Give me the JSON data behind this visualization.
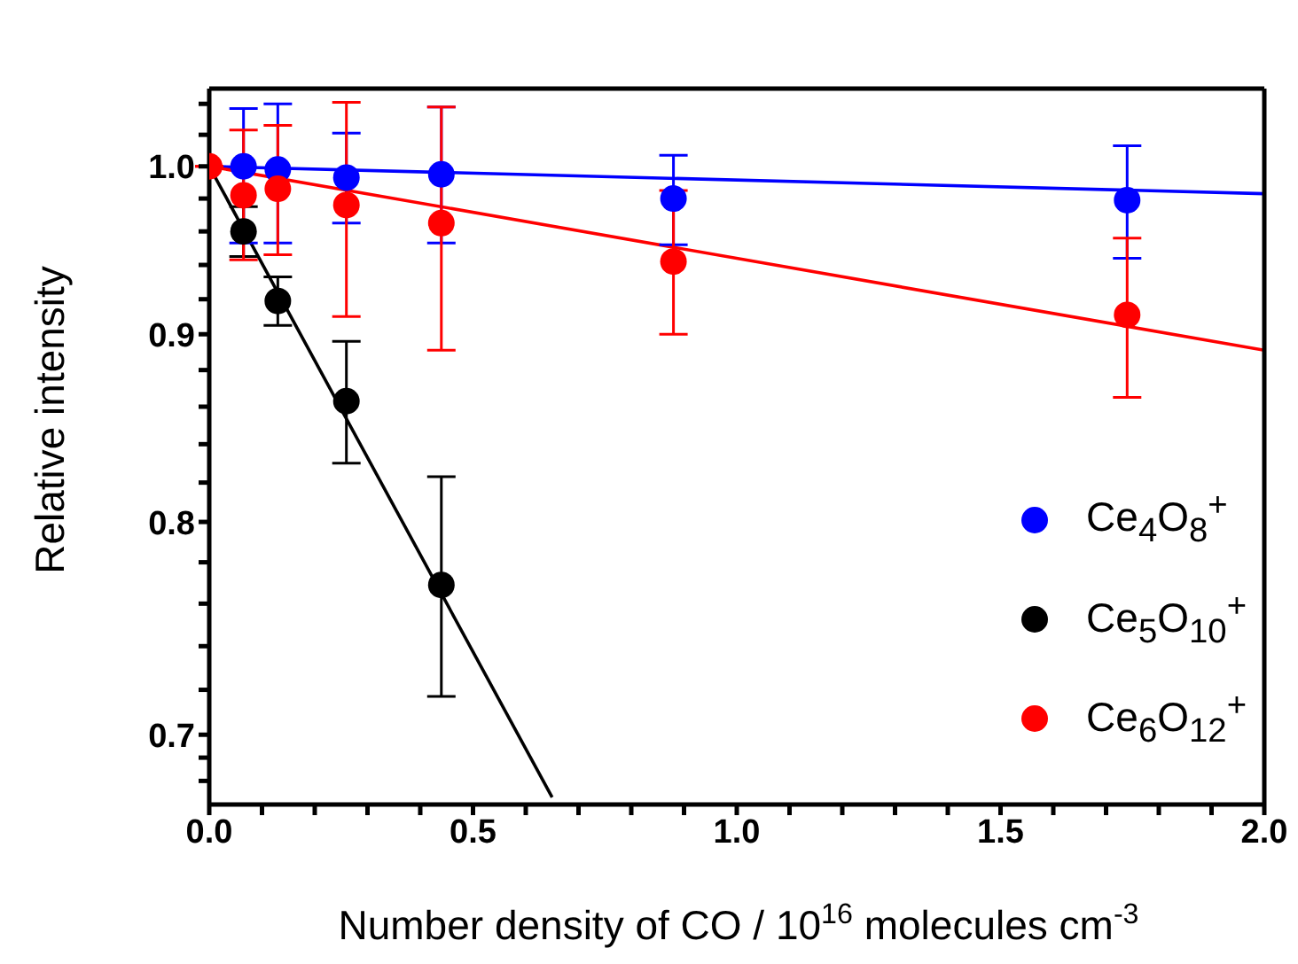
{
  "chart_data": {
    "type": "scatter",
    "xlabel": "Number density of CO / 10$^{16}$ molecules cm$^{-3}$",
    "ylabel": "Relative intensity",
    "log": "y",
    "xlim": [
      0,
      2
    ],
    "ylim": [
      0.67,
      1.05
    ],
    "xticks": [
      {
        "value": 0,
        "label": "0.0"
      },
      {
        "value": 0.1,
        "label": null
      },
      {
        "value": 0.2,
        "label": null
      },
      {
        "value": 0.3,
        "label": null
      },
      {
        "value": 0.4,
        "label": null
      },
      {
        "value": 0.5,
        "label": "0.5"
      },
      {
        "value": 0.6,
        "label": null
      },
      {
        "value": 0.7,
        "label": null
      },
      {
        "value": 0.8,
        "label": null
      },
      {
        "value": 0.9,
        "label": null
      },
      {
        "value": 1,
        "label": "1.0"
      },
      {
        "value": 1.1,
        "label": null
      },
      {
        "value": 1.2,
        "label": null
      },
      {
        "value": 1.3,
        "label": null
      },
      {
        "value": 1.4,
        "label": null
      },
      {
        "value": 1.5,
        "label": "1.5"
      },
      {
        "value": 1.6,
        "label": null
      },
      {
        "value": 1.7,
        "label": null
      },
      {
        "value": 1.8,
        "label": null
      },
      {
        "value": 1.9,
        "label": null
      },
      {
        "value": 2,
        "label": "2.0"
      }
    ],
    "yticks": [
      {
        "value": 0.7,
        "label": "0.7"
      },
      {
        "value": 0.8,
        "label": "0.8"
      },
      {
        "value": 0.9,
        "label": "0.9"
      },
      {
        "value": 1,
        "label": "1.0"
      },
      {
        "value": 0.68,
        "label": null
      },
      {
        "value": 0.69,
        "label": null
      },
      {
        "value": 0.72,
        "label": null
      },
      {
        "value": 0.74,
        "label": null
      },
      {
        "value": 0.76,
        "label": null
      },
      {
        "value": 0.78,
        "label": null
      },
      {
        "value": 0.82,
        "label": null
      },
      {
        "value": 0.84,
        "label": null
      },
      {
        "value": 0.86,
        "label": null
      },
      {
        "value": 0.88,
        "label": null
      },
      {
        "value": 0.92,
        "label": null
      },
      {
        "value": 0.94,
        "label": null
      },
      {
        "value": 0.96,
        "label": null
      },
      {
        "value": 0.98,
        "label": null
      },
      {
        "value": 1.02,
        "label": null
      },
      {
        "value": 1.04,
        "label": null
      }
    ],
    "legend": "bottom right",
    "marker": "circle",
    "series": [
      {
        "name": "Ce$_{4}$O$_{8}$$^{+}$",
        "color": "#0000ff",
        "x": [
          0.065,
          0.13,
          0.26,
          0.44,
          0.88,
          1.74
        ],
        "values": [
          1.0,
          0.998,
          0.993,
          0.995,
          0.98,
          0.979
        ],
        "errors": [
          [
            0.953,
            1.037
          ],
          [
            0.953,
            1.04
          ],
          [
            0.965,
            1.021
          ],
          [
            0.953,
            1.038
          ],
          [
            0.952,
            1.007
          ],
          [
            0.944,
            1.013
          ]
        ]
      },
      {
        "name": "Ce$_{5}$O$_{10}$$^{+}$",
        "color": "#000000",
        "x": [
          0.065,
          0.13,
          0.26,
          0.44
        ],
        "values": [
          0.96,
          0.919,
          0.863,
          0.769
        ],
        "errors": [
          [
            0.945,
            0.975
          ],
          [
            0.905,
            0.933
          ],
          [
            0.83,
            0.896
          ],
          [
            0.717,
            0.823
          ]
        ]
      },
      {
        "name": "Ce$_{6}$O$_{12}$$^{+}$",
        "color": "#ff0000",
        "x": [
          0,
          0.065,
          0.13,
          0.26,
          0.44,
          0.88,
          1.74
        ],
        "values": [
          1.0,
          0.982,
          0.986,
          0.976,
          0.965,
          0.942,
          0.911
        ],
        "errors": [
          null,
          [
            0.943,
            1.023
          ],
          [
            0.946,
            1.026
          ],
          [
            0.91,
            1.041
          ],
          [
            0.891,
            1.038
          ],
          [
            0.9,
            0.985
          ],
          [
            0.865,
            0.956
          ]
        ]
      },
      {
        "type": "line",
        "marker": "none",
        "color": "#0000ff",
        "x": [
          0,
          2
        ],
        "values": [
          1.0,
          0.983
        ]
      },
      {
        "type": "line",
        "marker": "none",
        "color": "#000000",
        "x": [
          0,
          0.65
        ],
        "values": [
          1.0,
          0.673
        ]
      },
      {
        "type": "line",
        "marker": "none",
        "color": "#ff0000",
        "x": [
          0,
          2
        ],
        "values": [
          1.0,
          0.891
        ]
      }
    ]
  }
}
